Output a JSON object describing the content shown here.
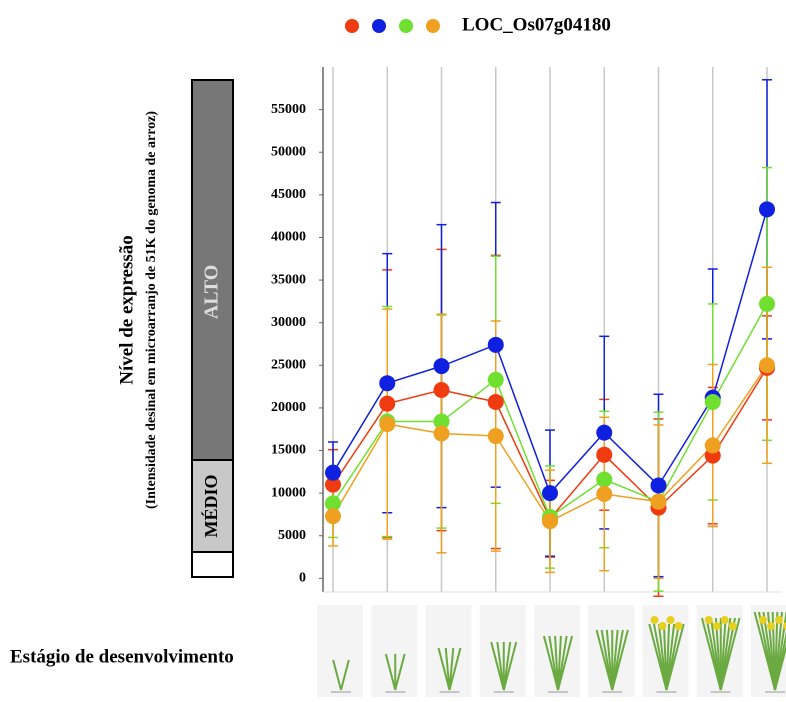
{
  "chart_data": {
    "type": "line",
    "title": "LOC_Os07g04180",
    "y_label": "Nível de expressão",
    "y_sublabel": "(Intensidade desinal em microarranjo de 51K do  genoma de arroz)",
    "x_label": "Estágio de desenvolvimento",
    "levels": [
      "ALTO",
      "MÉDIO"
    ],
    "categories": [
      null,
      null,
      null,
      null,
      null,
      null,
      null,
      null,
      null
    ],
    "series": [
      {
        "color": "#f03a10",
        "values": [
          11000,
          20500,
          22100,
          20700,
          7000,
          14500,
          8300,
          14400,
          24700
        ],
        "errors": [
          4100,
          15700,
          16500,
          17200,
          4500,
          6500,
          10400,
          8000,
          6100
        ]
      },
      {
        "color": "#1020e0",
        "values": [
          12400,
          22900,
          24900,
          27400,
          10000,
          17100,
          10900,
          21200,
          43300
        ],
        "errors": [
          3600,
          15200,
          16600,
          16700,
          7400,
          11300,
          10700,
          15100,
          15200
        ]
      },
      {
        "color": "#70e030",
        "values": [
          8800,
          18400,
          18400,
          23300,
          7200,
          11600,
          9000,
          20700,
          32200
        ],
        "errors": [
          4000,
          13500,
          12500,
          14500,
          6000,
          8000,
          10500,
          11500,
          16000
        ]
      },
      {
        "color": "#f0a020",
        "values": [
          7300,
          18100,
          17000,
          16700,
          6700,
          9900,
          9000,
          15600,
          25000
        ],
        "errors": [
          3500,
          13500,
          14000,
          13500,
          6000,
          9000,
          9000,
          9500,
          11500
        ]
      }
    ],
    "ylim": [
      -1600,
      60000
    ],
    "yticks": [
      0,
      5000,
      10000,
      15000,
      20000,
      25000,
      30000,
      35000,
      40000,
      45000,
      50000,
      55000
    ],
    "grid": true
  }
}
